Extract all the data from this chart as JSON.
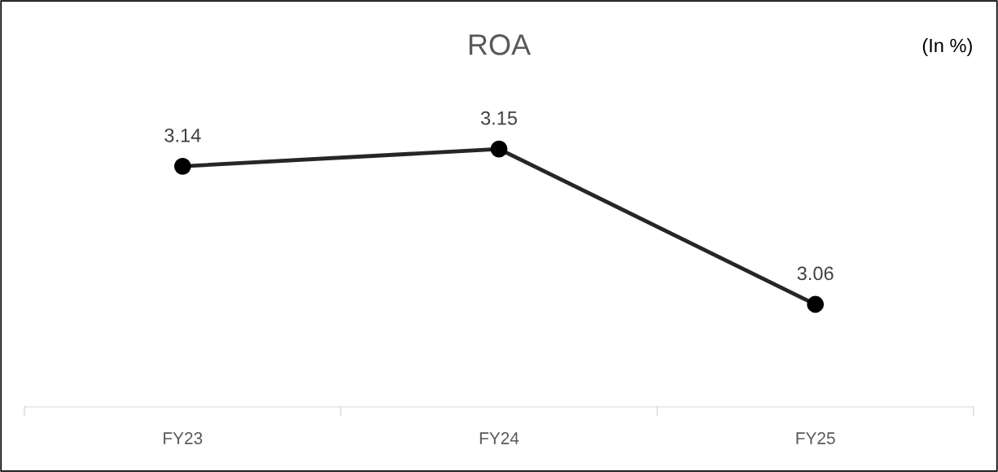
{
  "chart_data": {
    "type": "line",
    "title": "ROA",
    "annotations": [
      "(In %)"
    ],
    "categories": [
      "FY23",
      "FY24",
      "FY25"
    ],
    "series": [
      {
        "color": "#262626",
        "values": [
          3.14,
          3.15,
          3.06
        ]
      }
    ],
    "data_labels": true,
    "marker": "circle",
    "line_style": "solid",
    "grid": false,
    "legend": false
  }
}
